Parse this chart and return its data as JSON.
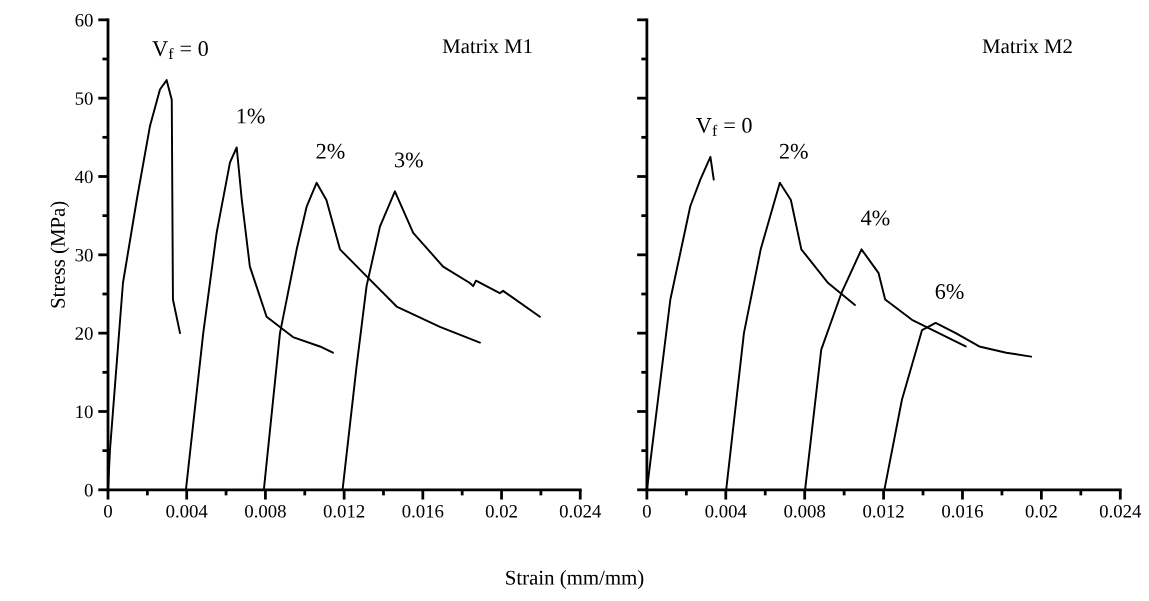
{
  "chart_data": [
    {
      "type": "line",
      "ylabel": "Stress (MPa)",
      "xlabel": "Strain (mm/mm)",
      "xlim": [
        0,
        0.024
      ],
      "ylim": [
        0,
        60
      ],
      "xticks": [
        0,
        {
          "value": 0.002,
          "label": null
        },
        0.004,
        {
          "value": 0.006,
          "label": null
        },
        0.008,
        {
          "value": 0.01,
          "label": null
        },
        0.012,
        {
          "value": 0.014,
          "label": null
        },
        0.016,
        {
          "value": 0.018,
          "label": null
        },
        0.02,
        {
          "value": 0.022,
          "label": null
        },
        0.024
      ],
      "yticks": [
        0,
        {
          "value": 5,
          "label": null
        },
        10,
        {
          "value": 15,
          "label": null
        },
        20,
        {
          "value": 25,
          "label": null
        },
        30,
        {
          "value": 35,
          "label": null
        },
        40,
        {
          "value": 45,
          "label": null
        },
        50,
        {
          "value": 55,
          "label": null
        },
        60
      ],
      "grid": false,
      "marker": "none",
      "line_style": "solid",
      "series": [
        {
          "name": "V$_{f}$ = 0",
          "color": "#000000",
          "x": [
            0,
            0.0001,
            0.00076,
            0.00146,
            0.00213,
            0.00264,
            0.00298,
            0.00324,
            0.0033,
            0.00366
          ],
          "values": [
            0,
            5.1,
            26.4,
            37,
            46.4,
            51.1,
            52.3,
            49.8,
            24.3,
            20
          ]
        },
        {
          "name": "1%",
          "color": "#000000",
          "x": [
            0.00396,
            0.00484,
            0.00552,
            0.0062,
            0.00654,
            0.0068,
            0.00721,
            0.00806,
            0.0094,
            0.01077,
            0.01143
          ],
          "values": [
            0,
            20,
            32.8,
            41.8,
            43.7,
            37,
            28.5,
            22.1,
            19.5,
            18.3,
            17.5
          ]
        },
        {
          "name": "2%",
          "color": "#000000",
          "x": [
            0.00792,
            0.00874,
            0.00959,
            0.0101,
            0.0106,
            0.0111,
            0.01179,
            0.01297,
            0.01467,
            0.01687,
            0.0189
          ],
          "values": [
            0,
            20,
            30.7,
            36.2,
            39.2,
            37,
            30.7,
            27.7,
            23.4,
            20.8,
            18.8
          ]
        },
        {
          "name": "3%",
          "color": "#000000",
          "x": [
            0.01192,
            0.01263,
            0.01314,
            0.01382,
            0.01458,
            0.01551,
            0.01703,
            0.01839,
            0.01856,
            0.0187,
            0.01991,
            0.02008,
            0.02195
          ],
          "values": [
            0,
            15.7,
            26,
            33.6,
            38.1,
            32.8,
            28.5,
            26.4,
            26,
            26.7,
            25.1,
            25.4,
            22.1
          ]
        }
      ],
      "annotations": [
        "Matrix M1"
      ]
    },
    {
      "type": "line",
      "xlim": [
        0,
        0.024
      ],
      "ylim": [
        0,
        60
      ],
      "tick_labels": "x",
      "xticks": [
        0,
        {
          "value": 0.002,
          "label": null
        },
        0.004,
        {
          "value": 0.006,
          "label": null
        },
        0.008,
        {
          "value": 0.01,
          "label": null
        },
        0.012,
        {
          "value": 0.014,
          "label": null
        },
        0.016,
        {
          "value": 0.018,
          "label": null
        },
        0.02,
        {
          "value": 0.022,
          "label": null
        },
        0.024
      ],
      "yticks": [
        0,
        {
          "value": 5,
          "label": null
        },
        10,
        {
          "value": 15,
          "label": null
        },
        20,
        {
          "value": 25,
          "label": null
        },
        30,
        {
          "value": 35,
          "label": null
        },
        40,
        {
          "value": 45,
          "label": null
        },
        50,
        {
          "value": 55,
          "label": null
        },
        60
      ],
      "grid": false,
      "marker": "none",
      "line_style": "solid",
      "series": [
        {
          "name": "V$_{f}$ = 0",
          "color": "#000000",
          "x": [
            0,
            0.00119,
            0.0022,
            0.00271,
            0.00322,
            0.00339
          ],
          "values": [
            0,
            24.3,
            36.2,
            39.6,
            42.5,
            39.6
          ]
        },
        {
          "name": "2%",
          "color": "#000000",
          "x": [
            0.00402,
            0.00492,
            0.00577,
            0.00674,
            0.0073,
            0.00783,
            0.00919,
            0.01055
          ],
          "values": [
            0,
            20,
            30.7,
            39.2,
            37,
            30.7,
            26.4,
            23.6
          ]
        },
        {
          "name": "4%",
          "color": "#000000",
          "x": [
            0.00802,
            0.00884,
            0.00986,
            0.01088,
            0.01174,
            0.01208,
            0.01344,
            0.0148,
            0.01616
          ],
          "values": [
            0,
            17.9,
            25.1,
            30.7,
            27.7,
            24.3,
            21.7,
            20,
            18.3
          ]
        },
        {
          "name": "6%",
          "color": "#000000",
          "x": [
            0.01204,
            0.01293,
            0.01395,
            0.01464,
            0.01566,
            0.01685,
            0.01822,
            0.01948
          ],
          "values": [
            0,
            11.5,
            20.4,
            21.3,
            20,
            18.3,
            17.5,
            17
          ]
        }
      ],
      "annotations": [
        "Matrix M2"
      ]
    }
  ]
}
